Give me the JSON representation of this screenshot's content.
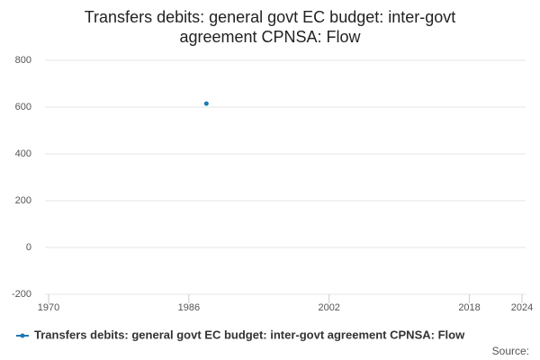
{
  "chart_data": {
    "type": "line",
    "title": "Transfers debits: general govt EC budget: inter-govt agreement CPNSA: Flow",
    "source": "Source:",
    "x": [
      1988
    ],
    "series": [
      {
        "name": "Transfers debits: general govt EC budget: inter-govt agreement CPNSA: Flow",
        "color": "#1f77b4",
        "values": [
          615
        ]
      }
    ],
    "xlim": [
      1970,
      2024
    ],
    "xticks": [
      1970,
      1986,
      2002,
      2018,
      2024
    ],
    "ylim": [
      -200,
      800
    ],
    "yticks": [
      -200,
      0,
      200,
      400,
      600,
      800
    ],
    "grid": true
  }
}
